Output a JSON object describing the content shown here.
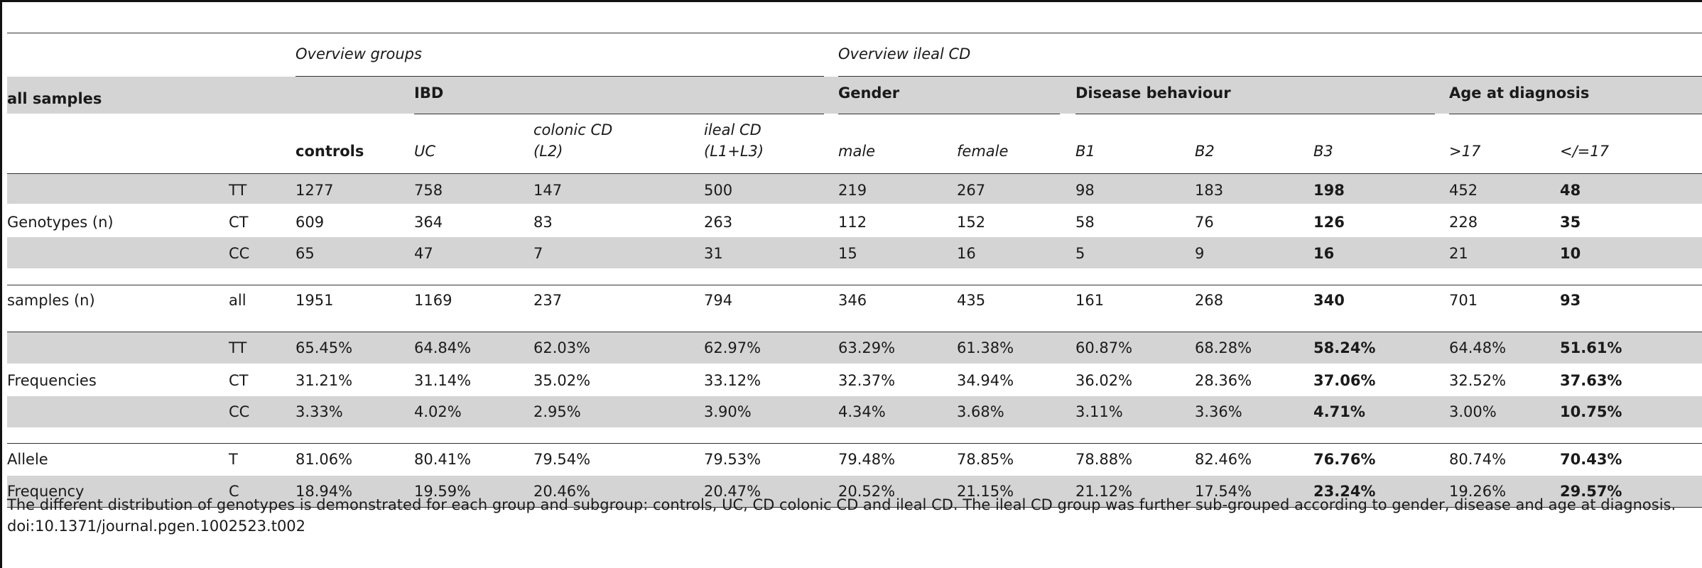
{
  "header": {
    "all_samples": "all samples",
    "overview_groups": "Overview groups",
    "overview_ileal": "Overview ileal CD",
    "ibd": "IBD",
    "gender": "Gender",
    "disease_behaviour": "Disease behaviour",
    "age_at_diagnosis": "Age at diagnosis",
    "columns": [
      {
        "line1": "controls",
        "line2": ""
      },
      {
        "line1": "UC",
        "line2": ""
      },
      {
        "line1": "colonic CD",
        "line2": "(L2)"
      },
      {
        "line1": "ileal CD",
        "line2": "(L1+L3)"
      },
      {
        "line1": "male",
        "line2": ""
      },
      {
        "line1": "female",
        "line2": ""
      },
      {
        "line1": "B1",
        "line2": ""
      },
      {
        "line1": "B2",
        "line2": ""
      },
      {
        "line1": "B3",
        "line2": ""
      },
      {
        "line1": ">17",
        "line2": ""
      },
      {
        "line1": "</=17",
        "line2": ""
      }
    ]
  },
  "rows": [
    {
      "label": "",
      "sub": "TT",
      "values": [
        "1277",
        "758",
        "147",
        "500",
        "219",
        "267",
        "98",
        "183",
        "198",
        "452",
        "48"
      ]
    },
    {
      "label": "Genotypes (n)",
      "sub": "CT",
      "values": [
        "609",
        "364",
        "83",
        "263",
        "112",
        "152",
        "58",
        "76",
        "126",
        "228",
        "35"
      ]
    },
    {
      "label": "",
      "sub": "CC",
      "values": [
        "65",
        "47",
        "7",
        "31",
        "15",
        "16",
        "5",
        "9",
        "16",
        "21",
        "10"
      ]
    },
    {
      "label": "samples (n)",
      "sub": "all",
      "values": [
        "1951",
        "1169",
        "237",
        "794",
        "346",
        "435",
        "161",
        "268",
        "340",
        "701",
        "93"
      ]
    },
    {
      "label": "",
      "sub": "TT",
      "values": [
        "65.45%",
        "64.84%",
        "62.03%",
        "62.97%",
        "63.29%",
        "61.38%",
        "60.87%",
        "68.28%",
        "58.24%",
        "64.48%",
        "51.61%"
      ]
    },
    {
      "label": "Frequencies",
      "sub": "CT",
      "values": [
        "31.21%",
        "31.14%",
        "35.02%",
        "33.12%",
        "32.37%",
        "34.94%",
        "36.02%",
        "28.36%",
        "37.06%",
        "32.52%",
        "37.63%"
      ]
    },
    {
      "label": "",
      "sub": "CC",
      "values": [
        "3.33%",
        "4.02%",
        "2.95%",
        "3.90%",
        "4.34%",
        "3.68%",
        "3.11%",
        "3.36%",
        "4.71%",
        "3.00%",
        "10.75%"
      ]
    },
    {
      "label": "Allele",
      "sub": "T",
      "values": [
        "81.06%",
        "80.41%",
        "79.54%",
        "79.53%",
        "79.48%",
        "78.85%",
        "78.88%",
        "82.46%",
        "76.76%",
        "80.74%",
        "70.43%"
      ]
    },
    {
      "label": "Frequency",
      "sub": "C",
      "values": [
        "18.94%",
        "19.59%",
        "20.46%",
        "20.47%",
        "20.52%",
        "21.15%",
        "21.12%",
        "17.54%",
        "23.24%",
        "19.26%",
        "29.57%"
      ]
    }
  ],
  "caption": {
    "text": "The different distribution of genotypes is demonstrated for each group and subgroup: controls, UC, CD colonic CD and ileal CD. The ileal CD group was further sub-grouped according to gender, disease and age at diagnosis.",
    "doi": "doi:10.1371/journal.pgen.1002523.t002"
  },
  "colors": {
    "band": "#d4d4d4",
    "rule": "#333333"
  }
}
